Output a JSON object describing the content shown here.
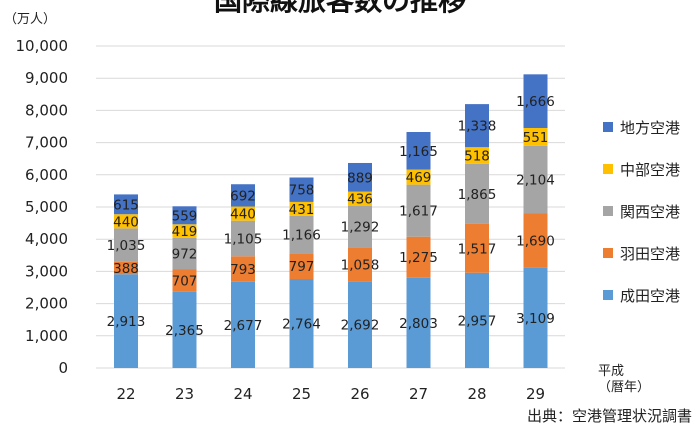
{
  "chart_data": {
    "type": "bar",
    "stacked": true,
    "title": "国際線旅客数の推移",
    "ylabel": "（万人）",
    "xlabel": "平成\n（暦年）",
    "source": "出典：空港管理状況調書",
    "categories": [
      "22",
      "23",
      "24",
      "25",
      "26",
      "27",
      "28",
      "29"
    ],
    "ylim": [
      0,
      10000
    ],
    "yticks": [
      "0",
      "1,000",
      "2,000",
      "3,000",
      "4,000",
      "5,000",
      "6,000",
      "7,000",
      "8,000",
      "9,000",
      "10,000"
    ],
    "grid": true,
    "legend_position": "right",
    "series": [
      {
        "name": "成田空港",
        "color": "#5b9bd5",
        "values": [
          2913,
          2365,
          2677,
          2764,
          2692,
          2803,
          2957,
          3109
        ],
        "labels": [
          "2,913",
          "2,365",
          "2,677",
          "2,764",
          "2,692",
          "2,803",
          "2,957",
          "3,109"
        ]
      },
      {
        "name": "羽田空港",
        "color": "#ed7d31",
        "values": [
          388,
          707,
          793,
          797,
          1058,
          1275,
          1517,
          1690
        ],
        "labels": [
          "388",
          "707",
          "793",
          "797",
          "1,058",
          "1,275",
          "1,517",
          "1,690"
        ]
      },
      {
        "name": "関西空港",
        "color": "#a5a5a5",
        "values": [
          1035,
          972,
          1105,
          1166,
          1292,
          1617,
          1865,
          2104
        ],
        "labels": [
          "1,035",
          "972",
          "1,105",
          "1,166",
          "1,292",
          "1,617",
          "1,865",
          "2,104"
        ]
      },
      {
        "name": "中部空港",
        "color": "#ffc000",
        "values": [
          440,
          419,
          440,
          431,
          436,
          469,
          518,
          551
        ],
        "labels": [
          "440",
          "419",
          "440",
          "431",
          "436",
          "469",
          "518",
          "551"
        ]
      },
      {
        "name": "地方空港",
        "color": "#4472c4",
        "values": [
          615,
          559,
          692,
          758,
          889,
          1165,
          1338,
          1666
        ],
        "labels": [
          "615",
          "559",
          "692",
          "758",
          "889",
          "1,165",
          "1,338",
          "1,666"
        ]
      }
    ],
    "legend_order": [
      "地方空港",
      "中部空港",
      "関西空港",
      "羽田空港",
      "成田空港"
    ]
  }
}
